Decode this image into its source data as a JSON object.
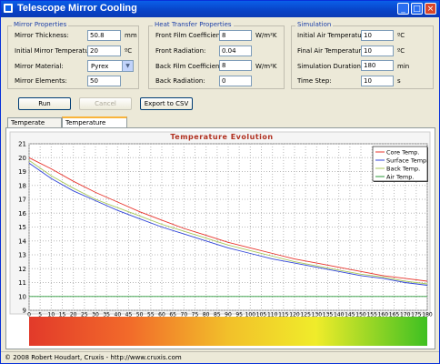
{
  "window": {
    "title": "Telescope Mirror Cooling",
    "buttons": [
      "_",
      "□",
      "×"
    ]
  },
  "mirror": {
    "title": "Mirror Properties",
    "thickness_label": "Mirror Thickness:",
    "thickness_value": "50.8",
    "thickness_unit": "mm",
    "init_temp_label": "Initial Mirror Temperature:",
    "init_temp_value": "20",
    "init_temp_unit": "ºC",
    "material_label": "Mirror Material:",
    "material_value": "Pyrex",
    "elements_label": "Mirror Elements:",
    "elements_value": "50"
  },
  "heat": {
    "title": "Heat Transfer Properties",
    "front_film_label": "Front Film Coefficient:",
    "front_film_value": "8",
    "front_film_unit": "W/m²K",
    "front_rad_label": "Front Radiation:",
    "front_rad_value": "0.04",
    "back_film_label": "Back Film Coefficient:",
    "back_film_value": "8",
    "back_film_unit": "W/m²K",
    "back_rad_label": "Back Radiation:",
    "back_rad_value": "0"
  },
  "sim": {
    "title": "Simulation",
    "init_air_label": "Initial Air Temperature:",
    "init_air_value": "10",
    "init_air_unit": "ºC",
    "final_air_label": "Final Air Temperature:",
    "final_air_value": "10",
    "final_air_unit": "ºC",
    "duration_label": "Simulation Duration:",
    "duration_value": "180",
    "duration_unit": "min",
    "step_label": "Time Step:",
    "step_value": "10",
    "step_unit": "s"
  },
  "actions": {
    "run": "Run",
    "cancel": "Cancel",
    "export": "Export to CSV"
  },
  "tabs": [
    "Temperate Profile",
    "Temperature Evolution"
  ],
  "status": "© 2008 Robert Houdart, Cruxis  -  http://www.cruxis.com",
  "colors": {
    "core": "#e8342c",
    "surface": "#3045d8",
    "back": "#a8c85a",
    "air": "#2a9a3a",
    "title": "#b03020"
  },
  "chart_data": {
    "type": "line",
    "title": "Temperature Evolution",
    "xlim": [
      0,
      180
    ],
    "ylim": [
      9,
      21
    ],
    "xticks": [
      0,
      5,
      10,
      15,
      20,
      25,
      30,
      35,
      40,
      45,
      50,
      55,
      60,
      65,
      70,
      75,
      80,
      85,
      90,
      95,
      100,
      105,
      110,
      115,
      120,
      125,
      130,
      135,
      140,
      145,
      150,
      155,
      160,
      165,
      170,
      175,
      180
    ],
    "yticks": [
      9,
      10,
      11,
      12,
      13,
      14,
      15,
      16,
      17,
      18,
      19,
      20,
      21
    ],
    "x": [
      0,
      10,
      20,
      30,
      40,
      50,
      60,
      70,
      80,
      90,
      100,
      110,
      120,
      130,
      140,
      150,
      160,
      170,
      180
    ],
    "series": [
      {
        "name": "Core Temp.",
        "color": "#e8342c",
        "values": [
          20.0,
          19.2,
          18.3,
          17.5,
          16.8,
          16.1,
          15.5,
          14.9,
          14.4,
          13.9,
          13.5,
          13.1,
          12.7,
          12.4,
          12.1,
          11.8,
          11.5,
          11.3,
          11.1
        ]
      },
      {
        "name": "Surface Temp.",
        "color": "#3045d8",
        "values": [
          19.6,
          18.5,
          17.6,
          16.9,
          16.2,
          15.6,
          15.0,
          14.5,
          14.0,
          13.5,
          13.1,
          12.7,
          12.4,
          12.1,
          11.8,
          11.5,
          11.3,
          11.0,
          10.8
        ]
      },
      {
        "name": "Back Temp.",
        "color": "#a8c85a",
        "values": [
          19.8,
          18.7,
          17.8,
          17.0,
          16.4,
          15.8,
          15.2,
          14.7,
          14.2,
          13.7,
          13.3,
          12.9,
          12.5,
          12.2,
          11.9,
          11.6,
          11.4,
          11.1,
          10.9
        ]
      },
      {
        "name": "Air Temp.",
        "color": "#2a9a3a",
        "values": [
          10,
          10,
          10,
          10,
          10,
          10,
          10,
          10,
          10,
          10,
          10,
          10,
          10,
          10,
          10,
          10,
          10,
          10,
          10
        ]
      }
    ],
    "legend": "top-right",
    "grid": true
  }
}
